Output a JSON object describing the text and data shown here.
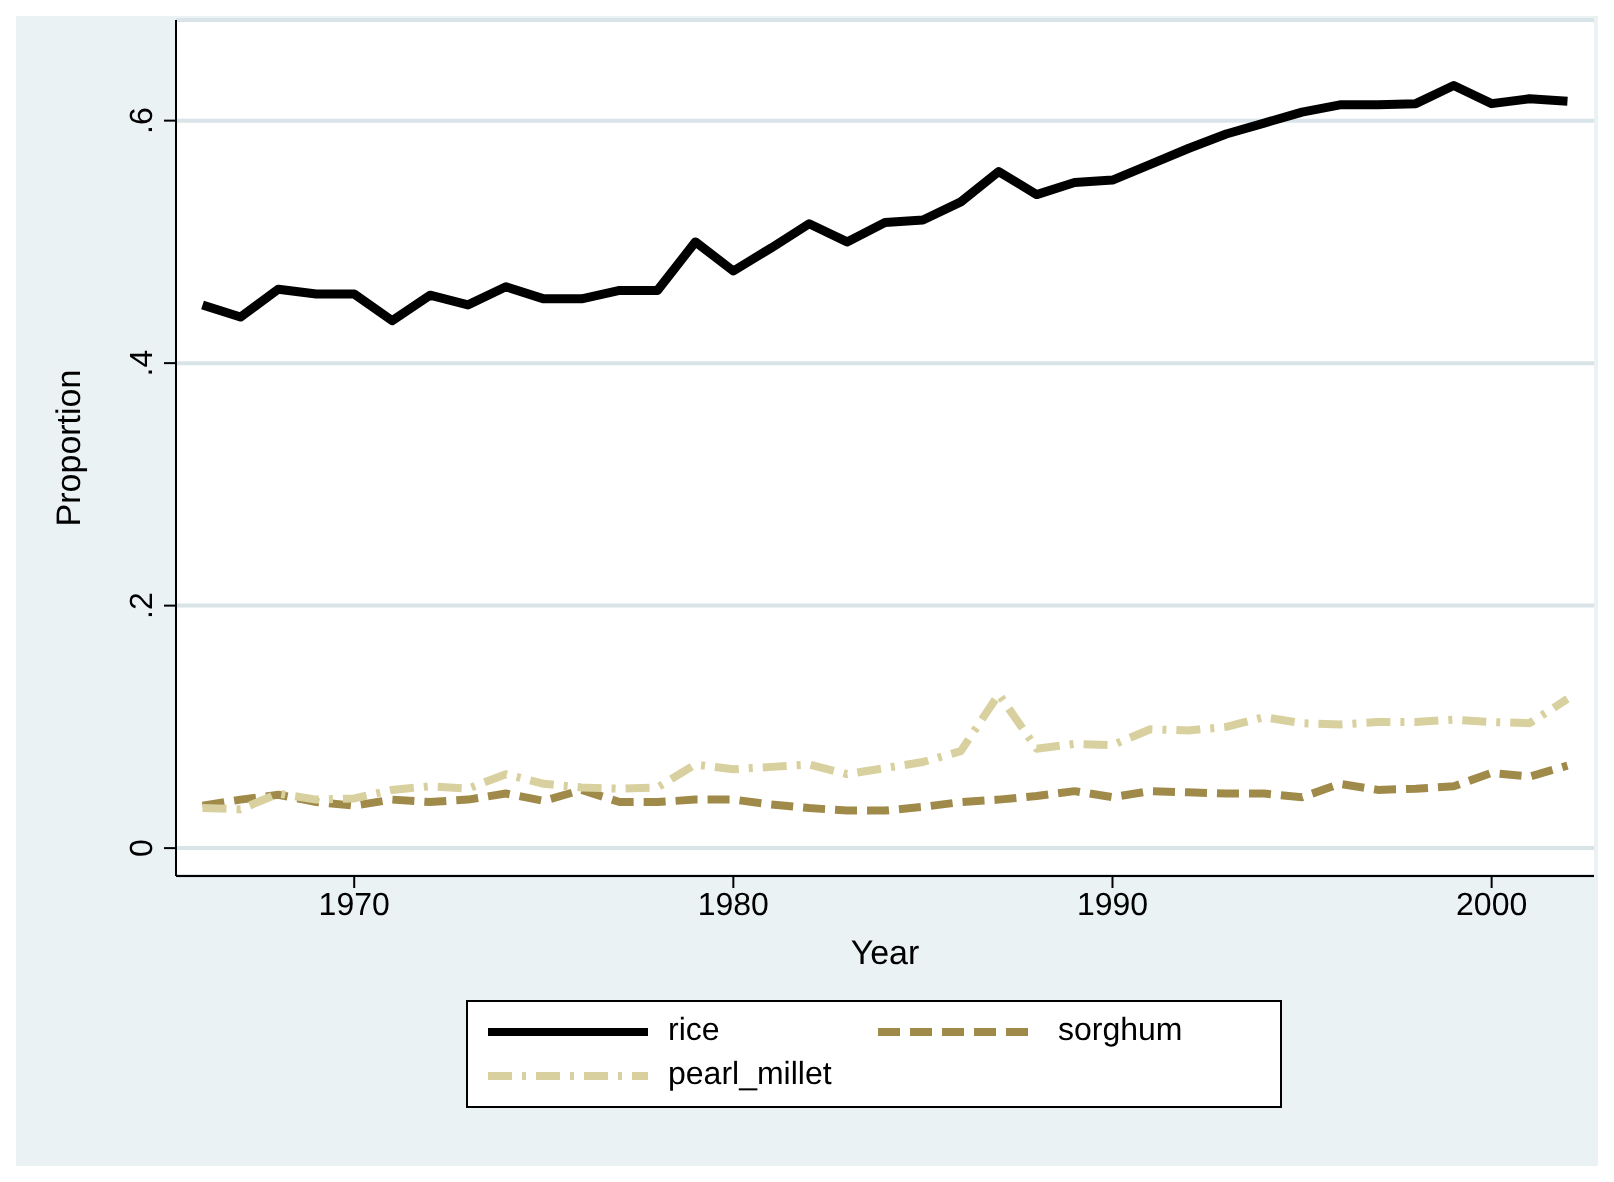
{
  "chart_data": {
    "type": "line",
    "xlabel": "Year",
    "ylabel": "Proportion",
    "x": [
      1966,
      1967,
      1968,
      1969,
      1970,
      1971,
      1972,
      1973,
      1974,
      1975,
      1976,
      1977,
      1978,
      1979,
      1980,
      1981,
      1982,
      1983,
      1984,
      1985,
      1986,
      1987,
      1988,
      1989,
      1990,
      1991,
      1992,
      1993,
      1994,
      1995,
      1996,
      1997,
      1998,
      1999,
      2000,
      2001,
      2002
    ],
    "series": [
      {
        "name": "rice",
        "color": "#000000",
        "line_style": "solid",
        "values": [
          0.448,
          0.438,
          0.461,
          0.457,
          0.457,
          0.435,
          0.456,
          0.448,
          0.463,
          0.453,
          0.453,
          0.46,
          0.46,
          0.5,
          0.476,
          0.495,
          0.515,
          0.5,
          0.516,
          0.518,
          0.533,
          0.558,
          0.539,
          0.549,
          0.551,
          0.564,
          0.577,
          0.589,
          0.598,
          0.607,
          0.613,
          0.613,
          0.614,
          0.629,
          0.614,
          0.618,
          0.616
        ]
      },
      {
        "name": "sorghum",
        "color": "#a08a4a",
        "line_style": "dashed",
        "values": [
          0.035,
          0.04,
          0.044,
          0.038,
          0.035,
          0.04,
          0.038,
          0.04,
          0.045,
          0.039,
          0.048,
          0.038,
          0.038,
          0.04,
          0.04,
          0.036,
          0.033,
          0.031,
          0.031,
          0.034,
          0.038,
          0.04,
          0.043,
          0.047,
          0.042,
          0.047,
          0.046,
          0.045,
          0.045,
          0.042,
          0.053,
          0.048,
          0.049,
          0.051,
          0.062,
          0.059,
          0.068
        ]
      },
      {
        "name": "pearl_millet",
        "color": "#d8d09e",
        "line_style": "dashdot",
        "values": [
          0.033,
          0.032,
          0.045,
          0.04,
          0.041,
          0.048,
          0.051,
          0.049,
          0.061,
          0.053,
          0.05,
          0.049,
          0.05,
          0.069,
          0.065,
          0.067,
          0.069,
          0.061,
          0.066,
          0.071,
          0.08,
          0.127,
          0.082,
          0.086,
          0.085,
          0.098,
          0.097,
          0.1,
          0.108,
          0.103,
          0.102,
          0.104,
          0.104,
          0.106,
          0.104,
          0.103,
          0.123
        ]
      }
    ],
    "xlim": [
      1965.3,
      2002.7
    ],
    "xticks": [
      1970,
      1980,
      1990,
      2000
    ],
    "ylim": [
      -0.023,
      0.683
    ],
    "yticks": [
      {
        "value": 0,
        "label": "0"
      },
      {
        "value": 0.2,
        "label": ".2"
      },
      {
        "value": 0.4,
        "label": ".4"
      },
      {
        "value": 0.6,
        "label": ".6"
      }
    ],
    "grid": "y",
    "legend": "bottom",
    "marker": "none"
  }
}
